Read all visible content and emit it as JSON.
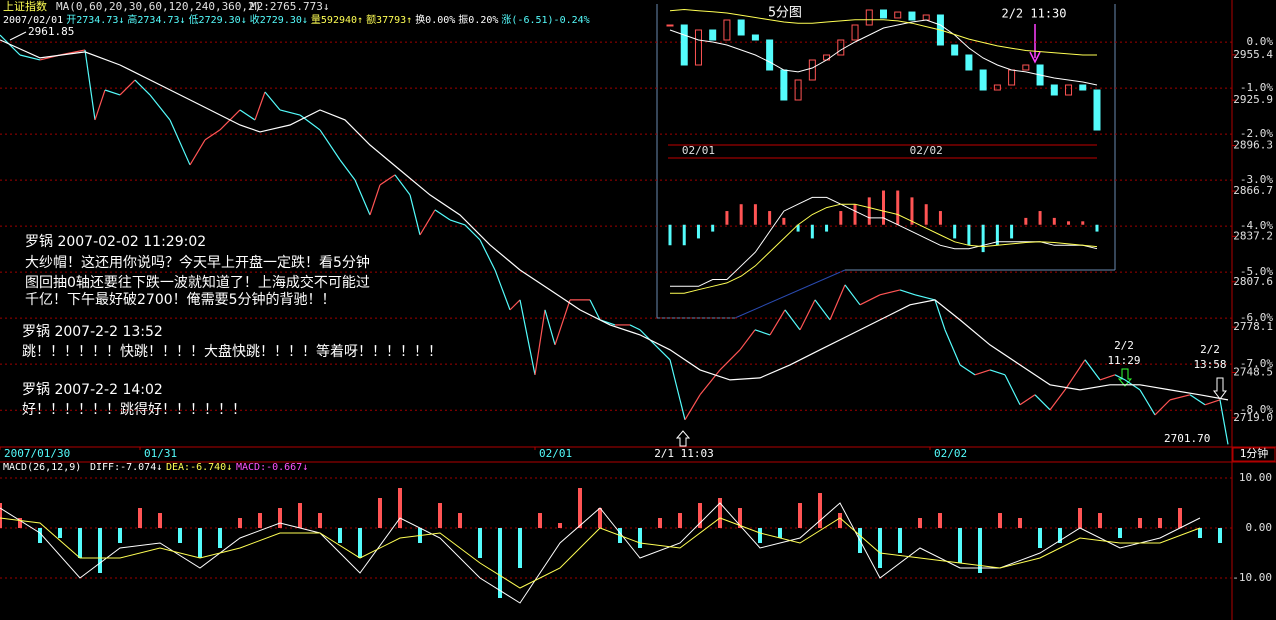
{
  "header": {
    "index_name": "上证指数",
    "ma_params": "MA(0,60,20,30,60,120,240,360,2)",
    "m2": "M2:2765.773↓",
    "quote": [
      "2007/02/01",
      "开2734.73↓",
      "高2734.73↓",
      "低2729.30↓",
      "收2729.30↓",
      "量592940↑",
      "额37793↑",
      "换0.00%",
      "振0.20%",
      "涨(-6.51)-0.24%"
    ]
  },
  "comments": [
    {
      "head": "罗锅 2007-02-02 11:29:02",
      "lines": [
        "大纱帽！这还用你说吗？今天早上开盘一定跌！看5分钟",
        "图回抽0轴还要往下跌一波就知道了！上海成交不可能过",
        "千亿！下午最好破2700！俺需要5分钟的背驰！！"
      ]
    },
    {
      "head": "罗锅  2007-2-2  13:52",
      "lines": [
        "跳！！！！！！快跳！！！！大盘快跳！！！！等着呀！！！！！！"
      ]
    },
    {
      "head": "罗锅   2007-2-2  14:02",
      "lines": [
        "好！！！！！！跳得好！！！！！！"
      ]
    }
  ],
  "chart_data": [
    {
      "type": "line",
      "period_label": "1分钟",
      "series": [
        {
          "color": "#ff5454",
          "down_color": "#54fcfc",
          "x": [
            0,
            20,
            40,
            60,
            85,
            95,
            105,
            120,
            135,
            150,
            170,
            190,
            205,
            220,
            240,
            255,
            265,
            280,
            300,
            320,
            340,
            355,
            370,
            380,
            395,
            410,
            420,
            435,
            450,
            465,
            480,
            495,
            510,
            520,
            535,
            545,
            555,
            570,
            590,
            600,
            615,
            630,
            640,
            655,
            670,
            685,
            700,
            720,
            740,
            755,
            770,
            785,
            800,
            815,
            830,
            845,
            860,
            880,
            900,
            915,
            935,
            945,
            960,
            975,
            990,
            1005,
            1020,
            1035,
            1050,
            1065,
            1085,
            1100,
            1115,
            1125,
            1140,
            1155,
            1170,
            1190,
            1205,
            1220,
            1228
          ],
          "values": [
            2968.3,
            2955.3,
            2952.1,
            2955.3,
            2958.6,
            2913,
            2932.5,
            2929.3,
            2939,
            2929.3,
            2913,
            2883.7,
            2900,
            2906.5,
            2919.5,
            2913,
            2931.2,
            2919.5,
            2916.2,
            2906.5,
            2887,
            2873.9,
            2851.1,
            2870.7,
            2877.2,
            2864.2,
            2838.1,
            2854.4,
            2847.9,
            2844.6,
            2834.9,
            2815.3,
            2789.3,
            2795.8,
            2747,
            2789.3,
            2766.5,
            2795.8,
            2795.8,
            2782.8,
            2779.5,
            2779.5,
            2776.3,
            2766.5,
            2756.8,
            2717.7,
            2734,
            2750.2,
            2763.3,
            2776.3,
            2773,
            2789.3,
            2776.3,
            2795.8,
            2782.8,
            2805.6,
            2792.6,
            2799.1,
            2802.3,
            2799.1,
            2795.8,
            2776.3,
            2753.5,
            2747,
            2750.2,
            2747,
            2727.5,
            2734,
            2724.2,
            2737.2,
            2756.8,
            2743.7,
            2747,
            2743.7,
            2737.2,
            2720.9,
            2730.7,
            2734,
            2727.5,
            2730.7,
            2701.7
          ]
        },
        {
          "color": "#ffffff",
          "x": [
            0,
            40,
            85,
            120,
            160,
            200,
            240,
            260,
            290,
            320,
            345,
            370,
            400,
            430,
            460,
            490,
            520,
            550,
            580,
            610,
            640,
            670,
            700,
            730,
            760,
            790,
            820,
            850,
            880,
            910,
            935,
            960,
            990,
            1020,
            1050,
            1080,
            1110,
            1140,
            1170,
            1200,
            1228
          ],
          "values": [
            2965.1,
            2953.4,
            2957.3,
            2948.8,
            2935.8,
            2922.8,
            2909.7,
            2905.2,
            2909.7,
            2919.5,
            2913,
            2896.7,
            2880.4,
            2864.2,
            2851.1,
            2831.6,
            2815.3,
            2802.3,
            2789.3,
            2779.5,
            2773,
            2763.3,
            2750.2,
            2743.7,
            2745,
            2753.5,
            2763.3,
            2773,
            2782.8,
            2792.6,
            2795.8,
            2782.8,
            2766.5,
            2753.5,
            2740.5,
            2737.2,
            2740.5,
            2740.5,
            2737.2,
            2734,
            2730.7
          ]
        }
      ],
      "xlim": [
        0,
        1230
      ],
      "xticks": [
        {
          "value": 0,
          "label": "2007/01/30"
        },
        {
          "value": 140,
          "label": "01/31"
        },
        {
          "value": 535,
          "label": "02/01"
        },
        {
          "value": 930,
          "label": "02/02"
        }
      ],
      "ylim": [
        2700,
        2982
      ],
      "yticks": [
        2955.4,
        2925.9,
        2896.3,
        2866.7,
        2837.2,
        2807.6,
        2778.1,
        2748.5,
        {
          "value": 2719,
          "label": "2719.0"
        }
      ],
      "y2lim": [
        -8.8,
        0.61
      ],
      "y2ticks": [
        {
          "value": 0,
          "label": "0.0%"
        },
        {
          "value": -1,
          "label": "-1.0%"
        },
        {
          "value": -2,
          "label": "-2.0%"
        },
        {
          "value": -3,
          "label": "-3.0%"
        },
        {
          "value": -4,
          "label": "-4.0%"
        },
        {
          "value": -5,
          "label": "-5.0%"
        },
        {
          "value": -6,
          "label": "-6.0%"
        },
        {
          "value": -7,
          "label": "-7.0%"
        },
        {
          "value": -8,
          "label": "-8.0%"
        }
      ],
      "grid": true,
      "annotations": [
        [
          "2961.85"
        ],
        [
          "2701.70"
        ],
        [
          "2/1 11:03"
        ],
        [
          "2/2",
          "11:29"
        ],
        [
          "2/2",
          "13:58"
        ]
      ]
    },
    {
      "type": "macd",
      "title": "MACD(26,12,9)",
      "series": [
        {
          "name": "MACD:-0.667↓",
          "color": "#ff54ff",
          "up_color": "#ff5454",
          "down_color": "#54fcfc",
          "kind": "bar",
          "x": [
            0,
            20,
            40,
            60,
            80,
            100,
            120,
            140,
            160,
            180,
            200,
            220,
            240,
            260,
            280,
            300,
            320,
            340,
            360,
            380,
            400,
            420,
            440,
            460,
            480,
            500,
            520,
            540,
            560,
            580,
            600,
            620,
            640,
            660,
            680,
            700,
            720,
            740,
            760,
            780,
            800,
            820,
            840,
            860,
            880,
            900,
            920,
            940,
            960,
            980,
            1000,
            1020,
            1040,
            1060,
            1080,
            1100,
            1120,
            1140,
            1160,
            1180,
            1200,
            1220
          ],
          "values": [
            5,
            2,
            -3,
            -2,
            -6,
            -9,
            -3,
            4,
            3,
            -3,
            -6,
            -4,
            2,
            3,
            4,
            5,
            3,
            -3,
            -6,
            6,
            8,
            -3,
            5,
            3,
            -6,
            -14,
            -8,
            3,
            1,
            8,
            4,
            -3,
            -4,
            2,
            3,
            5,
            6,
            4,
            -3,
            -2,
            5,
            7,
            3,
            -5,
            -8,
            -5,
            2,
            3,
            -7,
            -9,
            3,
            2,
            -4,
            -3,
            4,
            3,
            -2,
            2,
            2,
            4,
            -2,
            -3
          ]
        },
        {
          "name": "DIFF:-7.074↓",
          "color": "#ffffff",
          "kind": "line",
          "x": [
            0,
            40,
            80,
            120,
            160,
            200,
            240,
            280,
            320,
            360,
            400,
            440,
            480,
            520,
            560,
            600,
            640,
            680,
            720,
            760,
            800,
            840,
            880,
            920,
            960,
            1000,
            1040,
            1080,
            1120,
            1160,
            1200
          ],
          "values": [
            4,
            -1,
            -10,
            -4,
            -3,
            -8,
            -2,
            1,
            -1,
            -9,
            2,
            -2,
            -10,
            -15,
            -3,
            4,
            -6,
            -3,
            5,
            -4,
            -2,
            5,
            -10,
            -4,
            -8,
            -8,
            -5,
            0,
            -4,
            -2,
            2
          ]
        },
        {
          "name": "DEA:-6.740↓",
          "color": "#ffff54",
          "kind": "line",
          "x": [
            0,
            40,
            80,
            120,
            160,
            200,
            240,
            280,
            320,
            360,
            400,
            440,
            480,
            520,
            560,
            600,
            640,
            680,
            720,
            760,
            800,
            840,
            880,
            920,
            960,
            1000,
            1040,
            1080,
            1120,
            1160,
            1200
          ],
          "values": [
            2,
            1,
            -6,
            -6,
            -4,
            -6,
            -4,
            -1,
            -1,
            -6,
            -2,
            -1,
            -7,
            -12,
            -8,
            0,
            -3,
            -4,
            2,
            -1,
            -3,
            2,
            -5,
            -6,
            -7,
            -8,
            -6,
            -2,
            -3,
            -3,
            0
          ]
        }
      ],
      "xlim": [
        0,
        1230
      ],
      "ylim": [
        -18.4,
        13.2
      ],
      "yticks": [
        {
          "value": 10,
          "label": "10.00"
        },
        {
          "value": 0,
          "label": "0.00"
        },
        {
          "value": -10,
          "label": "-10.00"
        }
      ]
    },
    {
      "type": "candle",
      "title": "5分图",
      "annotation": "2/2 11:30",
      "series": [
        {
          "color": "#ff5454",
          "down_color": "#54fcfc",
          "kind": "candle",
          "values": [
            2792.4,
            2757.2,
            2788,
            2779.2,
            2796.8,
            2783.6,
            2779.2,
            2752.8,
            2726.4,
            2744,
            2761.6,
            2766,
            2779.2,
            2792.4,
            2805.6,
            2798.6,
            2803.8,
            2796.8,
            2801.2,
            2774.8,
            2766,
            2752.8,
            2735.2,
            2739.6,
            2752.8,
            2757.2,
            2739.6,
            2730.8,
            2739.6,
            2735.2,
            2700
          ]
        },
        {
          "color": "#ffffff",
          "kind": "line",
          "values": [
            2788,
            2783.6,
            2779.2,
            2777.4,
            2774.8,
            2770.4,
            2766,
            2759.8,
            2752.8,
            2751.1,
            2754.6,
            2761.6,
            2770.4,
            2777.4,
            2783.6,
            2789.8,
            2792.4,
            2795,
            2796.8,
            2792.4,
            2783.6,
            2772.2,
            2763.4,
            2757.2,
            2752.8,
            2751.1,
            2748.4,
            2745.8,
            2744,
            2742.2,
            2739.6
          ]
        },
        {
          "color": "#ffff54",
          "kind": "line",
          "values": [
            2805,
            2806,
            2805,
            2804,
            2803,
            2801,
            2799,
            2797,
            2795,
            2794,
            2794,
            2795,
            2796,
            2797,
            2797,
            2797,
            2796,
            2794,
            2791,
            2788,
            2784,
            2780,
            2777,
            2774,
            2772,
            2770,
            2769,
            2768,
            2767,
            2766,
            2766
          ]
        }
      ],
      "xlim": [
        0,
        30
      ],
      "xticks": [
        {
          "value": 2,
          "label": "02/01"
        },
        {
          "value": 18,
          "label": "02/02"
        }
      ],
      "ylim": [
        2700,
        2810
      ]
    },
    {
      "type": "macd",
      "series": [
        {
          "up_color": "#ff5454",
          "down_color": "#54fcfc",
          "kind": "bar",
          "values": [
            -3,
            -3,
            -2,
            -1,
            2,
            3,
            3,
            2,
            1,
            -1,
            -2,
            -1,
            2,
            3,
            4,
            5,
            5,
            4,
            3,
            2,
            -2,
            -3,
            -4,
            -3,
            -2,
            1,
            2,
            1,
            0.5,
            0.5,
            -1
          ]
        },
        {
          "color": "#ffffff",
          "kind": "line",
          "values": [
            -9,
            -9,
            -9,
            -8,
            -8,
            -6,
            -4,
            -1,
            2,
            3,
            4,
            4,
            3,
            2,
            1,
            1,
            0,
            -1,
            -2,
            -3,
            -3.5,
            -3.5,
            -3,
            -2.5,
            -2.5,
            -2.5,
            -2.5,
            -3,
            -3,
            -3,
            -3.5
          ]
        },
        {
          "color": "#ffff54",
          "kind": "line",
          "values": [
            -10,
            -10,
            -9.5,
            -9,
            -8.5,
            -7.5,
            -6,
            -4,
            -2,
            0,
            1.5,
            2.5,
            3,
            3,
            2.5,
            2,
            1.5,
            0.5,
            -0.5,
            -1.5,
            -2.5,
            -3,
            -3.2,
            -3,
            -2.8,
            -2.6,
            -2.5,
            -2.6,
            -2.8,
            -3,
            -3.2
          ]
        }
      ],
      "xlim": [
        0,
        30
      ],
      "ylim": [
        -11,
        8
      ]
    }
  ]
}
